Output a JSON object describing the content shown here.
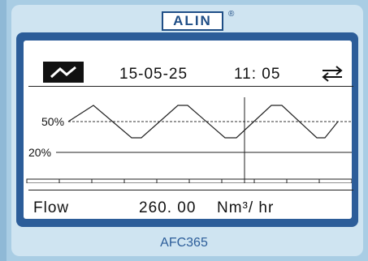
{
  "brand": {
    "logo": "ALIN",
    "registered": "®"
  },
  "status_bar": {
    "date": "15-05-25",
    "time": "11: 05",
    "trend_icon": "trend-wave-icon",
    "swap_icon": "swap-arrows-icon"
  },
  "trend": {
    "level_high": "50%",
    "level_low": "20%"
  },
  "reading": {
    "label": "Flow",
    "value": "260. 00",
    "unit": "Nm³/ hr"
  },
  "model": "AFC365",
  "colors": {
    "body": "#a9cde4",
    "frame": "#2c5d99",
    "brand": "#1f4e86"
  }
}
